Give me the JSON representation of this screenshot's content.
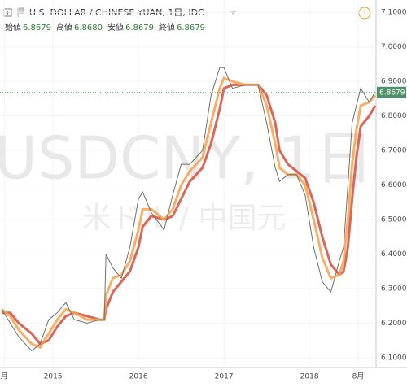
{
  "chart_data": {
    "type": "line",
    "title": "U.S. DOLLAR / CHINESE YUAN, 1日, IDC",
    "ohlc": [
      {
        "label": "始値",
        "value": "6.8679"
      },
      {
        "label": "高値",
        "value": "6.8680"
      },
      {
        "label": "安値",
        "value": "6.8679"
      },
      {
        "label": "終値",
        "value": "6.8679"
      }
    ],
    "watermark": "USDCNY, 1日",
    "watermark_sub": "米ドル / 中国元",
    "last_price": {
      "value": 6.8679,
      "label": "6.8679"
    },
    "x": [
      2014.4,
      2014.5,
      2014.6,
      2014.75,
      2014.85,
      2014.95,
      2015.05,
      2015.15,
      2015.25,
      2015.4,
      2015.55,
      2015.6,
      2015.62,
      2015.7,
      2015.8,
      2015.9,
      2016.0,
      2016.05,
      2016.15,
      2016.3,
      2016.4,
      2016.5,
      2016.6,
      2016.75,
      2016.85,
      2016.95,
      2017.0,
      2017.1,
      2017.25,
      2017.4,
      2017.5,
      2017.6,
      2017.65,
      2017.75,
      2017.85,
      2017.95,
      2018.05,
      2018.15,
      2018.25,
      2018.35,
      2018.4,
      2018.45,
      2018.5,
      2018.55,
      2018.6,
      2018.7,
      2018.77
    ],
    "series": [
      {
        "color": "#d94b3a",
        "values": [
          6.23,
          6.23,
          6.2,
          6.17,
          6.14,
          6.15,
          6.19,
          6.22,
          6.23,
          6.22,
          6.21,
          6.21,
          6.24,
          6.29,
          6.32,
          6.35,
          6.42,
          6.48,
          6.51,
          6.5,
          6.51,
          6.56,
          6.61,
          6.65,
          6.72,
          6.82,
          6.88,
          6.89,
          6.89,
          6.89,
          6.86,
          6.78,
          6.7,
          6.66,
          6.64,
          6.62,
          6.55,
          6.45,
          6.37,
          6.34,
          6.35,
          6.42,
          6.56,
          6.68,
          6.77,
          6.8,
          6.83
        ]
      },
      {
        "color": "#f4a24b",
        "values": [
          6.24,
          6.22,
          6.18,
          6.14,
          6.13,
          6.17,
          6.21,
          6.24,
          6.23,
          6.21,
          6.21,
          6.21,
          6.28,
          6.33,
          6.34,
          6.38,
          6.47,
          6.53,
          6.53,
          6.5,
          6.53,
          6.6,
          6.64,
          6.68,
          6.78,
          6.88,
          6.91,
          6.9,
          6.89,
          6.89,
          6.83,
          6.72,
          6.65,
          6.63,
          6.63,
          6.6,
          6.5,
          6.39,
          6.33,
          6.34,
          6.38,
          6.5,
          6.66,
          6.76,
          6.83,
          6.84,
          6.86
        ]
      },
      {
        "color": "#707070",
        "values": [
          6.24,
          6.2,
          6.16,
          6.12,
          6.14,
          6.21,
          6.23,
          6.26,
          6.21,
          6.2,
          6.21,
          6.21,
          6.4,
          6.36,
          6.33,
          6.42,
          6.56,
          6.58,
          6.52,
          6.47,
          6.57,
          6.66,
          6.66,
          6.7,
          6.86,
          6.94,
          6.94,
          6.88,
          6.89,
          6.89,
          6.78,
          6.65,
          6.61,
          6.63,
          6.63,
          6.57,
          6.42,
          6.32,
          6.29,
          6.38,
          6.42,
          6.6,
          6.78,
          6.83,
          6.88,
          6.84,
          6.87
        ]
      }
    ],
    "xlim": [
      2014.38,
      2018.78
    ],
    "xticks": [
      {
        "value": 2014.43,
        "label": "月"
      },
      2015,
      2016,
      2017,
      2018,
      {
        "value": 2018.57,
        "label": "8月"
      }
    ],
    "ylim": [
      6.0715,
      7.1359
    ],
    "yticks": [
      {
        "value": 6.1,
        "label": "6.1000"
      },
      {
        "value": 6.2,
        "label": "6.2000"
      },
      {
        "value": 6.3,
        "label": "6.3000"
      },
      {
        "value": 6.4,
        "label": "6.4000"
      },
      {
        "value": 6.5,
        "label": "6.5000"
      },
      {
        "value": 6.6,
        "label": "6.6000"
      },
      {
        "value": 6.7,
        "label": "6.7000"
      },
      {
        "value": 6.8,
        "label": "6.8000"
      },
      {
        "value": 6.9,
        "label": "6.9000"
      },
      {
        "value": 7.0,
        "label": "7.0000"
      },
      {
        "value": 7.1,
        "label": "7.1000"
      }
    ],
    "grid": true
  }
}
